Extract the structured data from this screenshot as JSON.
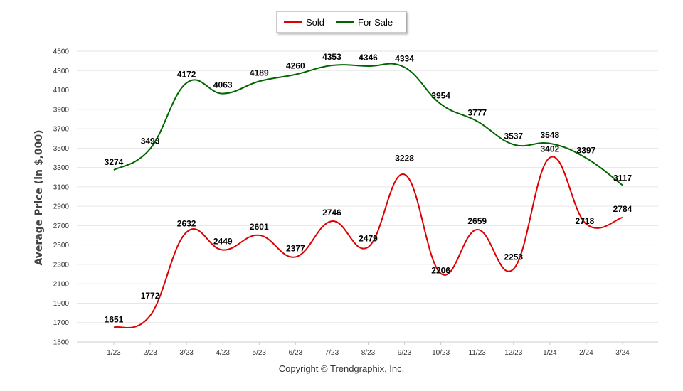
{
  "chart_data": {
    "type": "line",
    "categories": [
      "1/23",
      "2/23",
      "3/23",
      "4/23",
      "5/23",
      "6/23",
      "7/23",
      "8/23",
      "9/23",
      "10/23",
      "11/23",
      "12/23",
      "1/24",
      "2/24",
      "3/24"
    ],
    "series": [
      {
        "name": "Sold",
        "color": "#dd0000",
        "values": [
          1651,
          1772,
          2632,
          2449,
          2601,
          2377,
          2746,
          2479,
          3228,
          2206,
          2659,
          2253,
          3402,
          2718,
          2784
        ]
      },
      {
        "name": "For Sale",
        "color": "#006600",
        "values": [
          3274,
          3493,
          4172,
          4063,
          4189,
          4260,
          4353,
          4346,
          4334,
          3954,
          3777,
          3537,
          3548,
          3397,
          3117
        ]
      }
    ],
    "ylabel": "Average Price (in $,000)",
    "ylim": [
      1500,
      4500
    ],
    "yticks": [
      1500,
      1700,
      1900,
      2100,
      2300,
      2500,
      2700,
      2900,
      3100,
      3300,
      3500,
      3700,
      3900,
      4100,
      4300,
      4500
    ],
    "grid": true,
    "legend_position": "top-center"
  },
  "footer": {
    "copyright": "Copyright © Trendgraphix, Inc."
  }
}
